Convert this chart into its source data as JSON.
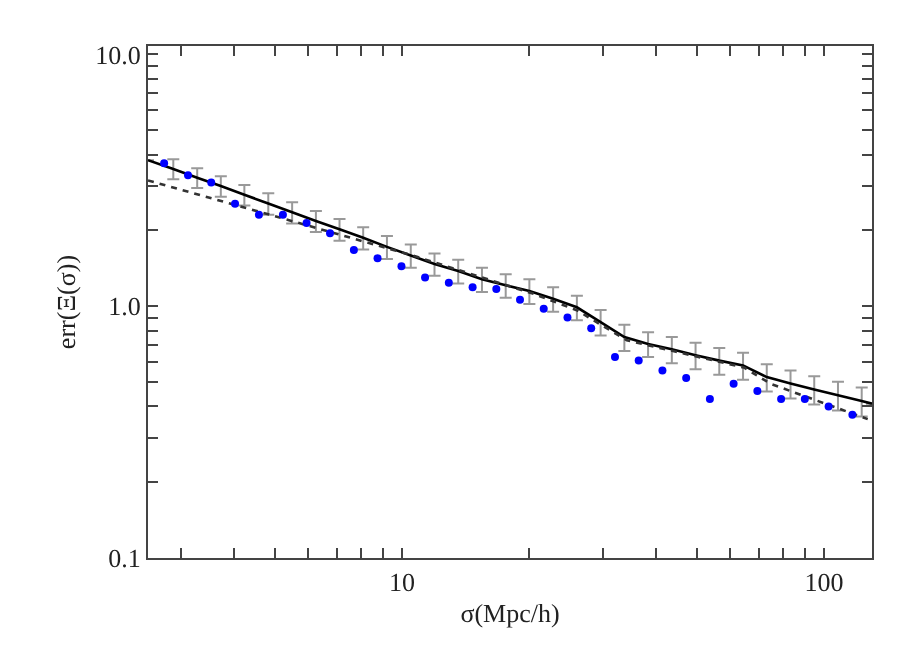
{
  "chart_data": {
    "type": "line",
    "xlabel": "σ(Mpc/h)",
    "ylabel": "err(Ξ(σ))",
    "log": "xy",
    "xlim": [
      2.5,
      130
    ],
    "ylim": [
      0.1,
      10.8
    ],
    "xticks": [
      {
        "value": 3,
        "label": null
      },
      {
        "value": 4,
        "label": null
      },
      {
        "value": 5,
        "label": null
      },
      {
        "value": 6,
        "label": null
      },
      {
        "value": 7,
        "label": null
      },
      {
        "value": 8,
        "label": null
      },
      {
        "value": 9,
        "label": null
      },
      10,
      {
        "value": 20,
        "label": null
      },
      {
        "value": 30,
        "label": null
      },
      {
        "value": 40,
        "label": null
      },
      {
        "value": 50,
        "label": null
      },
      {
        "value": 60,
        "label": null
      },
      {
        "value": 70,
        "label": null
      },
      {
        "value": 80,
        "label": null
      },
      {
        "value": 90,
        "label": null
      },
      100
    ],
    "yticks": [
      {
        "value": 0.1,
        "label": "0.1"
      },
      {
        "value": 0.2,
        "label": null
      },
      {
        "value": 0.3,
        "label": null
      },
      {
        "value": 0.4,
        "label": null
      },
      {
        "value": 0.5,
        "label": null
      },
      {
        "value": 0.6,
        "label": null
      },
      {
        "value": 0.7,
        "label": null
      },
      {
        "value": 0.8,
        "label": null
      },
      {
        "value": 0.9,
        "label": null
      },
      {
        "value": 1,
        "label": "1.0"
      },
      {
        "value": 2,
        "label": null
      },
      {
        "value": 3,
        "label": null
      },
      {
        "value": 4,
        "label": null
      },
      {
        "value": 5,
        "label": null
      },
      {
        "value": 6,
        "label": null
      },
      {
        "value": 7,
        "label": null
      },
      {
        "value": 8,
        "label": null
      },
      {
        "value": 9,
        "label": null
      },
      {
        "value": 10,
        "label": "10.0"
      }
    ],
    "series": [
      {
        "color": "#000000",
        "line_style": "solid",
        "marker": "none",
        "x": [
          2.5,
          2.87,
          3.27,
          3.72,
          4.23,
          4.82,
          5.49,
          6.25,
          7.11,
          8.09,
          9.21,
          10.49,
          11.94,
          13.59,
          15.47,
          17.61,
          20.04,
          22.81,
          25.97,
          29.56,
          33.65,
          38.3,
          43.6,
          49.63,
          56.49,
          64.31,
          73.2,
          83.33,
          94.85,
          107.97,
          122.9,
          130
        ],
        "values": [
          3.8,
          3.51,
          3.24,
          3.0,
          2.77,
          2.56,
          2.36,
          2.18,
          2.02,
          1.87,
          1.72,
          1.59,
          1.47,
          1.38,
          1.28,
          1.21,
          1.15,
          1.07,
          0.99,
          0.865,
          0.754,
          0.708,
          0.674,
          0.639,
          0.608,
          0.582,
          0.523,
          0.493,
          0.467,
          0.443,
          0.42,
          0.41
        ],
        "errors": [
          null,
          0.32,
          0.29,
          0.28,
          0.26,
          0.25,
          0.23,
          0.21,
          0.2,
          0.19,
          0.18,
          0.17,
          0.15,
          0.15,
          0.14,
          0.13,
          0.13,
          0.12,
          0.11,
          0.1,
          0.09,
          0.08,
          0.08,
          0.077,
          0.074,
          0.072,
          0.065,
          0.063,
          0.06,
          0.058,
          0.055,
          null
        ]
      },
      {
        "color": "#333333",
        "line_style": "dotted",
        "marker": "none",
        "x": [
          2.5,
          5.13,
          10.6,
          20.5,
          25.96,
          34.1,
          64.6,
          74.7,
          127
        ],
        "values": [
          3.16,
          2.25,
          1.59,
          1.12,
          0.964,
          0.732,
          0.571,
          0.492,
          0.356
        ]
      },
      {
        "type": "scatter",
        "color": "#0000ff",
        "marker": "circle",
        "x": [
          2.73,
          3.11,
          3.53,
          4.02,
          4.58,
          5.22,
          5.94,
          6.75,
          7.69,
          8.75,
          9.97,
          11.34,
          12.91,
          14.7,
          16.73,
          19.04,
          21.67,
          24.67,
          28.08,
          31.97,
          36.39,
          41.42,
          47.15,
          53.67,
          61.09,
          69.54,
          79.16,
          90.11,
          102.6,
          116.8
        ],
        "values": [
          3.7,
          3.31,
          3.1,
          2.55,
          2.31,
          2.31,
          2.14,
          1.95,
          1.67,
          1.55,
          1.44,
          1.3,
          1.24,
          1.19,
          1.17,
          1.06,
          0.976,
          0.901,
          0.817,
          0.629,
          0.609,
          0.556,
          0.519,
          0.428,
          0.492,
          0.46,
          0.428,
          0.428,
          0.4,
          0.371
        ]
      }
    ]
  }
}
